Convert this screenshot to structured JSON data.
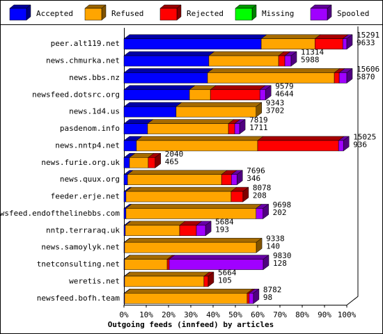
{
  "chart_data": {
    "type": "bar",
    "stacked": true,
    "orientation": "horizontal",
    "x_label": "Outgoing feeds (innfeed) by articles",
    "categories": [
      "peer.alt119.net",
      "news.chmurka.net",
      "news.bbs.nz",
      "newsfeed.dotsrc.org",
      "news.1d4.us",
      "pasdenom.info",
      "news.nntp4.net",
      "news.furie.org.uk",
      "news.quux.org",
      "feeder.erje.net",
      "newsfeed.endofthelinebbs.com",
      "nntp.terraraq.uk",
      "news.samoylyk.net",
      "tnetconsulting.net",
      "weretis.net",
      "newsfeed.bofh.team"
    ],
    "series": [
      {
        "name": "Accepted",
        "color": "#0000ff",
        "values": [
          61.6,
          38.1,
          37.5,
          29.4,
          23.4,
          10.6,
          5.6,
          2.5,
          1.6,
          0.9,
          0.9,
          0.6,
          0.3,
          0.3,
          0.3,
          0.3
        ]
      },
      {
        "name": "Refused",
        "color": "#ffa500",
        "values": [
          24.1,
          31.3,
          56.9,
          9.4,
          35.9,
          36.3,
          54.4,
          8.4,
          42.2,
          47.2,
          58.4,
          24.4,
          59.1,
          19.1,
          35.6,
          55.0
        ]
      },
      {
        "name": "Rejected",
        "color": "#ff0000",
        "values": [
          12.5,
          2.8,
          2.2,
          22.2,
          0,
          2.8,
          36.3,
          3.1,
          4.4,
          5.3,
          0,
          7.5,
          0,
          0.9,
          1.9,
          0.9
        ]
      },
      {
        "name": "Missing",
        "color": "#00ff00",
        "values": [
          0,
          0,
          0,
          0,
          0,
          0,
          0,
          0,
          0,
          0,
          0,
          0,
          0,
          0,
          0,
          0
        ]
      },
      {
        "name": "Spooled",
        "color": "#a000ff",
        "values": [
          1.8,
          2.8,
          3.4,
          2.5,
          0,
          2.2,
          2.2,
          0,
          2.5,
          0,
          3.1,
          4.1,
          0,
          42.2,
          0,
          1.9
        ]
      }
    ],
    "right_labels": [
      [
        15291,
        9633
      ],
      [
        11314,
        5988
      ],
      [
        15606,
        5870
      ],
      [
        9579,
        4644
      ],
      [
        9343,
        3702
      ],
      [
        7819,
        1711
      ],
      [
        15025,
        936
      ],
      [
        2040,
        465
      ],
      [
        7696,
        346
      ],
      [
        8078,
        208
      ],
      [
        9698,
        202
      ],
      [
        5684,
        193
      ],
      [
        9338,
        140
      ],
      [
        9830,
        128
      ],
      [
        5664,
        105
      ],
      [
        8782,
        98
      ]
    ],
    "xlim": [
      0,
      100
    ],
    "xticks": [
      {
        "value": 0,
        "label": "0%"
      },
      {
        "value": 10,
        "label": "10%"
      },
      {
        "value": 20,
        "label": "20%"
      },
      {
        "value": 30,
        "label": "30%"
      },
      {
        "value": 40,
        "label": "40%"
      },
      {
        "value": 50,
        "label": "50%"
      },
      {
        "value": 60,
        "label": "60%"
      },
      {
        "value": 70,
        "label": "70%"
      },
      {
        "value": 80,
        "label": "80%"
      },
      {
        "value": 90,
        "label": "90%"
      },
      {
        "value": 100,
        "label": "100%"
      }
    ]
  }
}
